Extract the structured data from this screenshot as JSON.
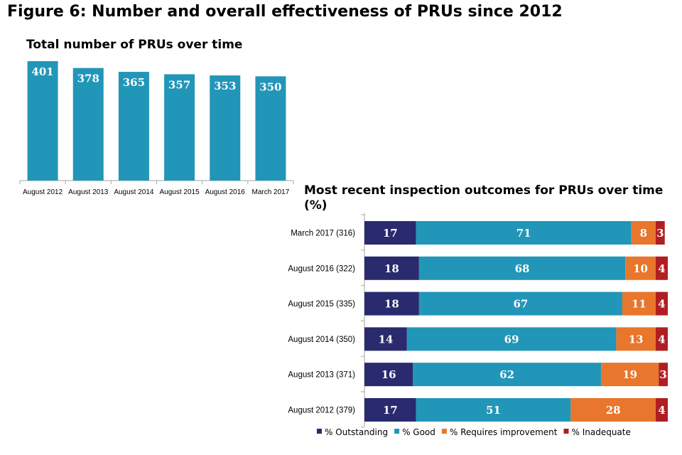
{
  "figure_title": "Figure 6: Number and overall effectiveness of PRUs since 2012",
  "colors": {
    "bar": "#2196b8",
    "outstanding": "#2a2a6e",
    "good": "#2196b8",
    "requires_improvement": "#e8762c",
    "inadequate": "#b01e22",
    "axis": "#a6a6a6"
  },
  "chart_data": [
    {
      "type": "bar",
      "title": "Total number of PRUs over time",
      "categories": [
        "August 2012",
        "August 2013",
        "August 2014",
        "August 2015",
        "August 2016",
        "March 2017"
      ],
      "values": [
        401,
        378,
        365,
        357,
        353,
        350
      ],
      "ylim": [
        0,
        401
      ],
      "xlabel": "",
      "ylabel": "",
      "grid": false
    },
    {
      "type": "bar",
      "orientation": "horizontal",
      "stacked": true,
      "title": "Most recent inspection outcomes for PRUs over time (%)",
      "categories": [
        "March 2017 (316)",
        "August 2016 (322)",
        "August 2015 (335)",
        "August 2014 (350)",
        "August 2013 (371)",
        "August 2012 (379)"
      ],
      "series": [
        {
          "name": "% Outstanding",
          "color_key": "outstanding",
          "values": [
            17,
            18,
            18,
            14,
            16,
            17
          ]
        },
        {
          "name": "% Good",
          "color_key": "good",
          "values": [
            71,
            68,
            67,
            69,
            62,
            51
          ]
        },
        {
          "name": "% Requires improvement",
          "color_key": "requires_improvement",
          "values": [
            8,
            10,
            11,
            13,
            19,
            28
          ]
        },
        {
          "name": "% Inadequate",
          "color_key": "inadequate",
          "values": [
            3,
            4,
            4,
            4,
            3,
            4
          ]
        }
      ],
      "xlim": [
        0,
        100
      ],
      "legend": "bottom",
      "grid": false
    }
  ]
}
